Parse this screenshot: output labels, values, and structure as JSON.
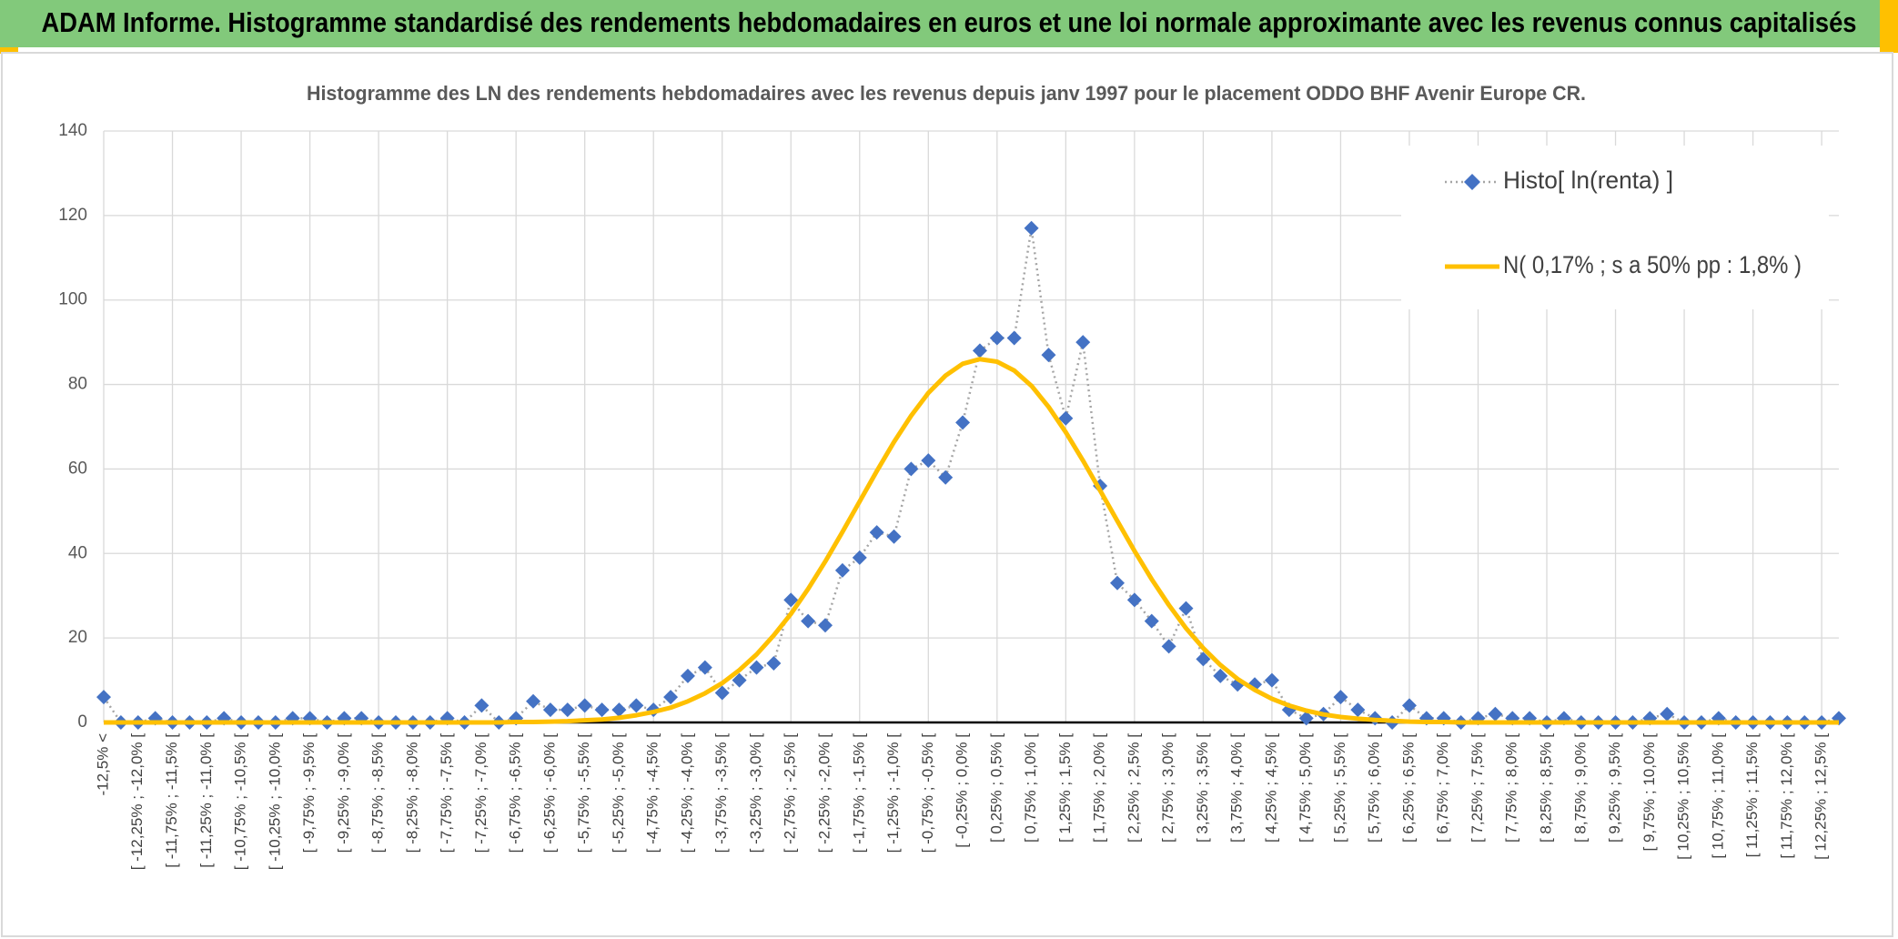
{
  "header": {
    "title": "ADAM Informe. Histogramme standardisé des rendements hebdomadaires en euros et une loi normale approximante avec les revenus connus capitalisés"
  },
  "chart_data": {
    "type": "line",
    "title": "Histogramme des LN des rendements hebdomadaires avec les revenus depuis janv 1997 pour le placement ODDO BHF Avenir Europe CR.",
    "categories": [
      "-12,5% <",
      null,
      "[ -12,25% ; -12,0% [",
      null,
      "[ -11,75% ; -11,5% [",
      null,
      "[ -11,25% ; -11,0% [",
      null,
      "[ -10,75% ; -10,5% [",
      null,
      "[ -10,25% ; -10,0% [",
      null,
      "[ -9,75% ; -9,5% [",
      null,
      "[ -9,25% ; -9,0% [",
      null,
      "[ -8,75% ; -8,5% [",
      null,
      "[ -8,25% ; -8,0% [",
      null,
      "[ -7,75% ; -7,5% [",
      null,
      "[ -7,25% ; -7,0% [",
      null,
      "[ -6,75% ; -6,5% [",
      null,
      "[ -6,25% ; -6,0% [",
      null,
      "[ -5,75% ; -5,5% [",
      null,
      "[ -5,25% ; -5,0% [",
      null,
      "[ -4,75% ; -4,5% [",
      null,
      "[ -4,25% ; -4,0% [",
      null,
      "[ -3,75% ; -3,5% [",
      null,
      "[ -3,25% ; -3,0% [",
      null,
      "[ -2,75% ; -2,5% [",
      null,
      "[ -2,25% ; -2,0% [",
      null,
      "[ -1,75% ; -1,5% [",
      null,
      "[ -1,25% ; -1,0% [",
      null,
      "[ -0,75% ; -0,5% [",
      null,
      "[ -0,25% ; 0,0% [",
      null,
      "[ 0,25% ; 0,5% [",
      null,
      "[ 0,75% ; 1,0% [",
      null,
      "[ 1,25% ; 1,5% [",
      null,
      "[ 1,75% ; 2,0% [",
      null,
      "[ 2,25% ; 2,5% [",
      null,
      "[ 2,75% ; 3,0% [",
      null,
      "[ 3,25% ; 3,5% [",
      null,
      "[ 3,75% ; 4,0% [",
      null,
      "[ 4,25% ; 4,5% [",
      null,
      "[ 4,75% ; 5,0% [",
      null,
      "[ 5,25% ; 5,5% [",
      null,
      "[ 5,75% ; 6,0% [",
      null,
      "[ 6,25% ; 6,5% [",
      null,
      "[ 6,75% ; 7,0% [",
      null,
      "[ 7,25% ; 7,5% [",
      null,
      "[ 7,75% ; 8,0% [",
      null,
      "[ 8,25% ; 8,5% [",
      null,
      "[ 8,75% ; 9,0% [",
      null,
      "[ 9,25% ; 9,5% [",
      null,
      "[ 9,75% ; 10,0% [",
      null,
      "[ 10,25% ; 10,5% [",
      null,
      "[ 10,75% ; 11,0% [",
      null,
      "[ 11,25% ; 11,5% [",
      null,
      "[ 11,75% ; 12,0% [",
      null,
      "[ 12,25% ; 12,5% [",
      null
    ],
    "series": [
      {
        "name": "Histo[ ln(renta) ]",
        "color": "#4472c4",
        "line_color": "#a5a5a5",
        "marker": "diamond",
        "values": [
          6,
          0,
          0,
          1,
          0,
          0,
          0,
          1,
          0,
          0,
          0,
          1,
          1,
          0,
          1,
          1,
          0,
          0,
          0,
          0,
          1,
          0,
          4,
          0,
          1,
          5,
          3,
          3,
          4,
          3,
          3,
          4,
          3,
          6,
          11,
          13,
          7,
          10,
          13,
          14,
          29,
          24,
          23,
          36,
          39,
          45,
          44,
          60,
          62,
          58,
          71,
          88,
          91,
          91,
          117,
          87,
          72,
          90,
          56,
          33,
          29,
          24,
          18,
          27,
          15,
          11,
          9,
          9,
          10,
          3,
          1,
          2,
          6,
          3,
          1,
          0,
          4,
          1,
          1,
          0,
          1,
          2,
          1,
          1,
          0,
          1,
          0,
          0,
          0,
          0,
          1,
          2,
          0,
          0,
          1,
          0,
          0,
          0,
          0,
          0,
          0,
          1
        ]
      },
      {
        "name": "N( 0,17% ; s a 50% pp : 1,8% )",
        "color": "#ffc000",
        "values": [
          0,
          0,
          0,
          0,
          0,
          0,
          0,
          0,
          0,
          0,
          0,
          0,
          0,
          0,
          0,
          0,
          0,
          0,
          0,
          0,
          0,
          0,
          0,
          0,
          0.1,
          0.1,
          0.2,
          0.3,
          0.5,
          0.7,
          1.1,
          1.7,
          2.5,
          3.5,
          5.0,
          6.9,
          9.3,
          12.4,
          16.1,
          20.6,
          25.7,
          31.6,
          38.1,
          45.1,
          52.3,
          59.5,
          66.4,
          72.6,
          78.0,
          82.1,
          84.9,
          86.0,
          85.4,
          83.3,
          79.7,
          74.7,
          68.7,
          62.0,
          54.9,
          47.7,
          40.6,
          33.9,
          27.8,
          22.3,
          17.6,
          13.6,
          10.3,
          7.7,
          5.6,
          4.0,
          2.8,
          1.9,
          1.3,
          0.9,
          0.6,
          0.4,
          0.2,
          0.1,
          0.1,
          0,
          0,
          0,
          0,
          0,
          0,
          0,
          0,
          0,
          0,
          0,
          0,
          0,
          0,
          0,
          0,
          0,
          0,
          0,
          0,
          0,
          0,
          0
        ]
      }
    ],
    "ylim": [
      0,
      140
    ],
    "yticks": [
      0,
      20,
      40,
      60,
      80,
      100,
      120,
      140
    ],
    "grid": true,
    "legend": "top-right"
  }
}
